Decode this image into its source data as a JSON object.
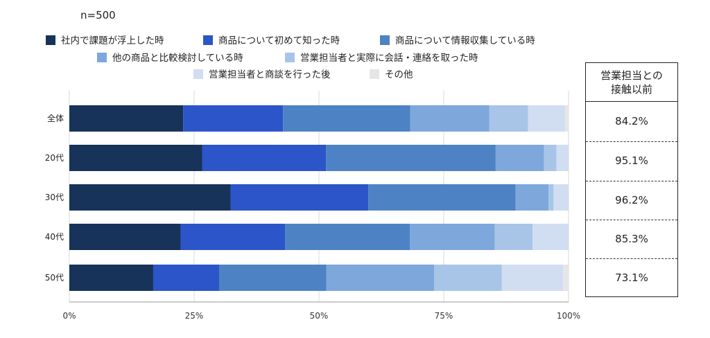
{
  "chart_data": {
    "type": "bar",
    "orientation": "horizontal",
    "stacked": true,
    "note": "n=500",
    "categories": [
      "全体",
      "20代",
      "30代",
      "40代",
      "50代"
    ],
    "series": [
      {
        "name": "社内で課題が浮上した時",
        "color": "#17335a",
        "values": [
          22.8,
          26.6,
          32.3,
          22.3,
          16.8
        ]
      },
      {
        "name": "商品について初めて知った時",
        "color": "#2b55c8",
        "values": [
          20.0,
          24.8,
          27.6,
          20.9,
          13.2
        ]
      },
      {
        "name": "商品について情報収集している時",
        "color": "#4d83c4",
        "values": [
          25.5,
          34.0,
          29.5,
          25.0,
          21.5
        ]
      },
      {
        "name": "他の商品と比較検討している時",
        "color": "#7ea7dc",
        "values": [
          15.8,
          9.7,
          6.6,
          17.0,
          21.6
        ]
      },
      {
        "name": "営業担当者と実際に会話・連絡を取った時",
        "color": "#a8c5e8",
        "values": [
          7.8,
          2.5,
          1.0,
          7.6,
          13.5
        ]
      },
      {
        "name": "営業担当者と商談を行った後",
        "color": "#d1def2",
        "values": [
          7.4,
          2.4,
          3.0,
          7.2,
          12.3
        ]
      },
      {
        "name": "その他",
        "color": "#e6e6e6",
        "values": [
          0.7,
          0.0,
          0.0,
          0.0,
          1.1
        ]
      }
    ],
    "xlim": [
      0,
      100
    ],
    "xticks": [
      "0%",
      "25%",
      "50%",
      "75%",
      "100%"
    ],
    "grid": true,
    "legend_position": "top"
  },
  "side_table": {
    "header_line1": "営業担当との",
    "header_line2": "接触以前",
    "values": [
      "84.2%",
      "95.1%",
      "96.2%",
      "85.3%",
      "73.1%"
    ]
  }
}
